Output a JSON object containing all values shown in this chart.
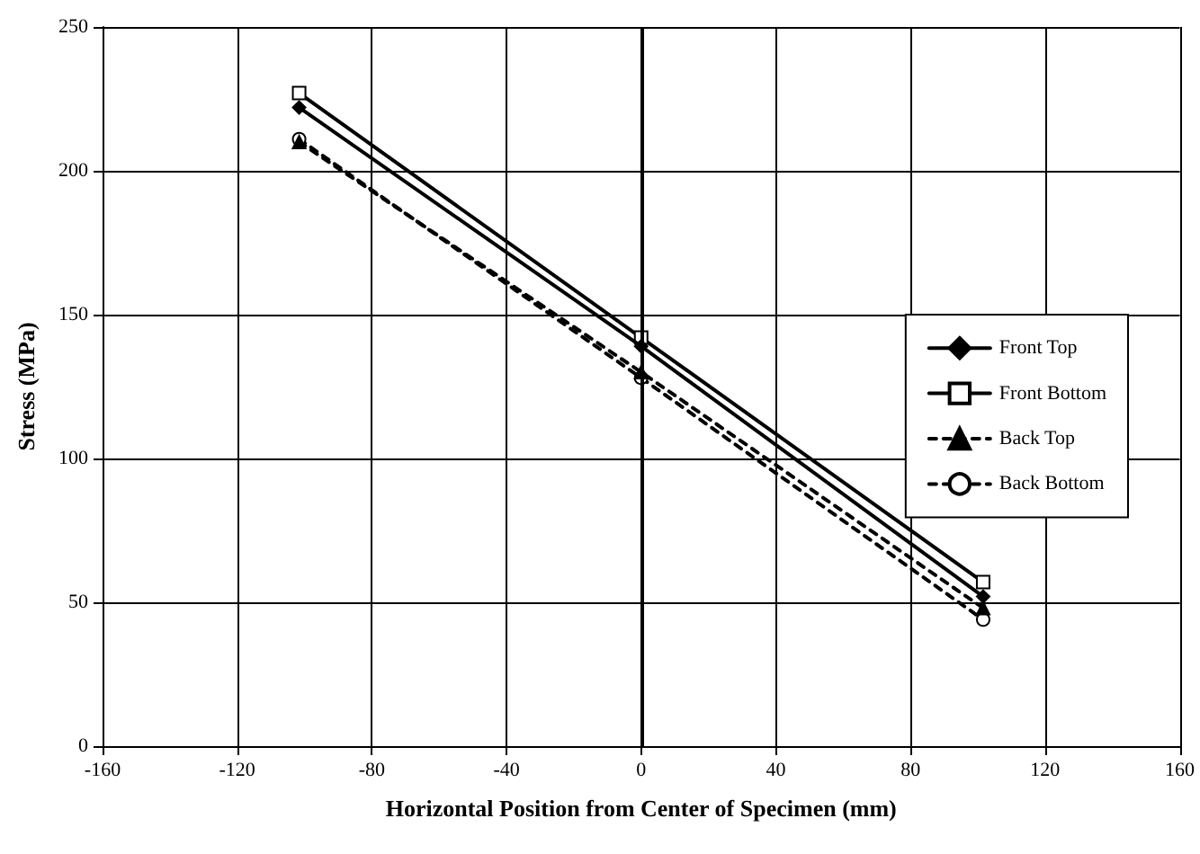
{
  "chart_data": {
    "type": "line",
    "xlabel": "Horizontal Position from Center of Specimen (mm)",
    "ylabel": "Stress (MPa)",
    "xlim": [
      -160,
      160
    ],
    "xticks": [
      -160,
      -120,
      -80,
      -40,
      0,
      40,
      80,
      120,
      160
    ],
    "ylim": [
      0,
      250
    ],
    "yticks": [
      0,
      50,
      100,
      150,
      200,
      250
    ],
    "grid": true,
    "legend": "right",
    "ref_lines": [
      {
        "axis": "x",
        "value": 0,
        "color": "#000000"
      }
    ],
    "series": [
      {
        "name": "Front Top",
        "color": "#000000",
        "marker": "diamond",
        "line_style": "solid",
        "x": [
          -101.6,
          0,
          101.6
        ],
        "values": [
          222,
          139,
          52
        ]
      },
      {
        "name": "Front Bottom",
        "color": "#000000",
        "marker": "square",
        "line_style": "solid",
        "x": [
          -101.6,
          0,
          101.6
        ],
        "values": [
          227,
          142,
          57
        ]
      },
      {
        "name": "Back Top",
        "color": "#000000",
        "marker": "triangle",
        "line_style": "dashed",
        "x": [
          -101.6,
          0,
          101.6
        ],
        "values": [
          210,
          130,
          48
        ]
      },
      {
        "name": "Back Bottom",
        "color": "#000000",
        "marker": "circle",
        "line_style": "dashed",
        "x": [
          -101.6,
          0,
          101.6
        ],
        "values": [
          211,
          128,
          44
        ]
      }
    ]
  }
}
